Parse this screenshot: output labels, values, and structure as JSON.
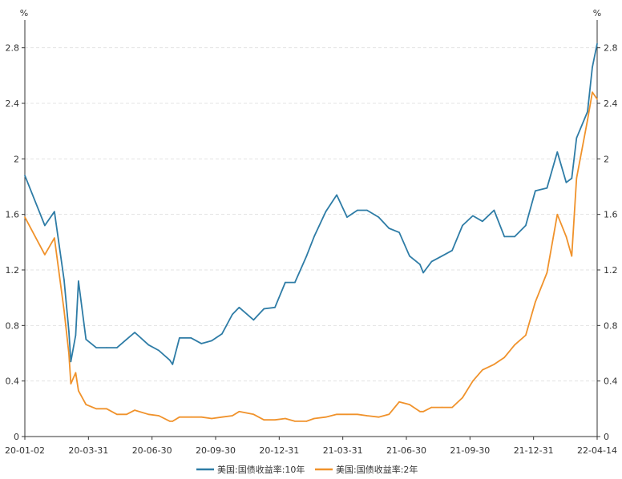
{
  "chart_data": {
    "type": "line",
    "title": "",
    "y_unit_left": "%",
    "y_unit_right": "%",
    "xlabel": "",
    "ylabel": "",
    "ylim": [
      0,
      3.0
    ],
    "y_ticks": [
      0,
      0.4,
      0.8,
      1.2,
      1.6,
      2,
      2.4,
      2.8
    ],
    "y_tick_labels": [
      "0",
      "0.4",
      "0.8",
      "1.2",
      "1.6",
      "2",
      "2.4",
      "2.8"
    ],
    "x_tick_labels": [
      "20-01-02",
      "20-03-31",
      "20-06-30",
      "20-09-30",
      "20-12-31",
      "21-03-31",
      "21-06-30",
      "21-09-30",
      "21-12-31",
      "22-04-14"
    ],
    "grid": "horizontal dashed",
    "legend_position": "bottom",
    "x": [
      "2020-01-02",
      "2020-01-31",
      "2020-02-14",
      "2020-02-28",
      "2020-03-06",
      "2020-03-09",
      "2020-03-16",
      "2020-03-20",
      "2020-03-31",
      "2020-04-15",
      "2020-04-30",
      "2020-05-15",
      "2020-05-29",
      "2020-06-10",
      "2020-06-30",
      "2020-07-15",
      "2020-07-31",
      "2020-08-04",
      "2020-08-14",
      "2020-08-31",
      "2020-09-15",
      "2020-09-30",
      "2020-10-15",
      "2020-10-30",
      "2020-11-09",
      "2020-11-30",
      "2020-12-15",
      "2020-12-31",
      "2021-01-15",
      "2021-01-29",
      "2021-02-15",
      "2021-02-26",
      "2021-03-15",
      "2021-03-31",
      "2021-04-15",
      "2021-04-30",
      "2021-05-14",
      "2021-05-31",
      "2021-06-15",
      "2021-06-30",
      "2021-07-15",
      "2021-07-30",
      "2021-08-04",
      "2021-08-16",
      "2021-08-31",
      "2021-09-15",
      "2021-09-30",
      "2021-10-15",
      "2021-10-29",
      "2021-11-15",
      "2021-11-30",
      "2021-12-15",
      "2021-12-31",
      "2022-01-14",
      "2022-01-31",
      "2022-02-15",
      "2022-02-28",
      "2022-03-08",
      "2022-03-15",
      "2022-03-31",
      "2022-04-07",
      "2022-04-14"
    ],
    "series": [
      {
        "name": "美国:国债收益率:10年",
        "color": "#2e7ca6",
        "values": [
          1.88,
          1.52,
          1.62,
          1.13,
          0.76,
          0.54,
          0.73,
          1.12,
          0.7,
          0.64,
          0.64,
          0.64,
          0.7,
          0.75,
          0.66,
          0.62,
          0.55,
          0.52,
          0.71,
          0.71,
          0.67,
          0.69,
          0.74,
          0.88,
          0.93,
          0.84,
          0.92,
          0.93,
          1.11,
          1.11,
          1.3,
          1.44,
          1.62,
          1.74,
          1.58,
          1.63,
          1.63,
          1.58,
          1.5,
          1.47,
          1.3,
          1.24,
          1.18,
          1.26,
          1.3,
          1.34,
          1.52,
          1.59,
          1.55,
          1.63,
          1.44,
          1.44,
          1.52,
          1.77,
          1.79,
          2.05,
          1.83,
          1.86,
          2.15,
          2.34,
          2.66,
          2.83
        ]
      },
      {
        "name": "美国:国债收益率:2年",
        "color": "#f0922b",
        "values": [
          1.58,
          1.31,
          1.43,
          0.91,
          0.6,
          0.38,
          0.46,
          0.33,
          0.23,
          0.2,
          0.2,
          0.16,
          0.16,
          0.19,
          0.16,
          0.15,
          0.11,
          0.11,
          0.14,
          0.14,
          0.14,
          0.13,
          0.14,
          0.15,
          0.18,
          0.16,
          0.12,
          0.12,
          0.13,
          0.11,
          0.11,
          0.13,
          0.14,
          0.16,
          0.16,
          0.16,
          0.15,
          0.14,
          0.16,
          0.25,
          0.23,
          0.18,
          0.18,
          0.21,
          0.21,
          0.21,
          0.28,
          0.4,
          0.48,
          0.52,
          0.57,
          0.66,
          0.73,
          0.97,
          1.18,
          1.6,
          1.44,
          1.3,
          1.86,
          2.28,
          2.48,
          2.43
        ]
      }
    ]
  },
  "legend": {
    "items": [
      {
        "label": "美国:国债收益率:10年",
        "color": "#2e7ca6"
      },
      {
        "label": "美国:国债收益率:2年",
        "color": "#f0922b"
      }
    ]
  }
}
